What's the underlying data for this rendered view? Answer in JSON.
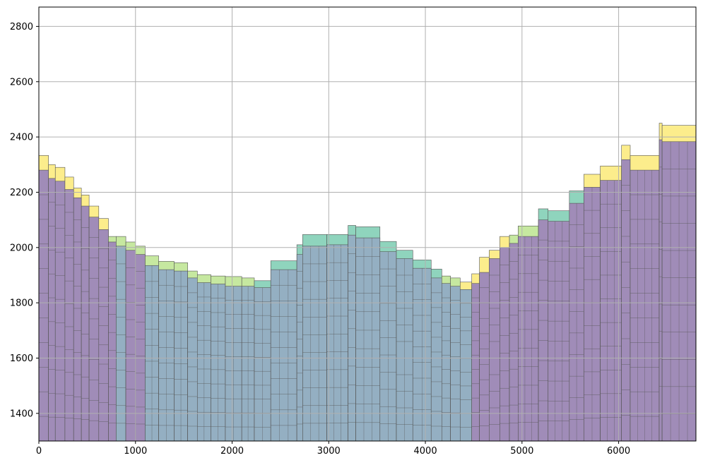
{
  "chart_data": {
    "type": "bar",
    "title": "",
    "xlabel": "",
    "ylabel": "",
    "xlim": [
      0,
      6800
    ],
    "ylim": [
      1300,
      2870
    ],
    "grid": true,
    "xticks": [
      0,
      1000,
      2000,
      3000,
      4000,
      5000,
      6000
    ],
    "xtick_labels": [
      "0",
      "1000",
      "2000",
      "3000",
      "4000",
      "5000",
      "6000"
    ],
    "yticks": [
      1400,
      1600,
      1800,
      2000,
      2200,
      2400,
      2600,
      2800
    ],
    "ytick_labels": [
      "1400",
      "1600",
      "1800",
      "2000",
      "2200",
      "2400",
      "2600",
      "2800"
    ],
    "colors": {
      "bedrock_purple": "#a08cb8",
      "bedrock_blue": "#94afc2",
      "layer_yellow": "#fced8c",
      "layer_lightgreen": "#c6e8a0",
      "layer_teal": "#8fd4bd",
      "edge": "#555555",
      "grid": "#b0b0b0"
    },
    "columns": [
      {
        "x0": 0,
        "x1": 100,
        "base": 2280,
        "cap": 2333,
        "cap_layer": "yellow",
        "fill": "purple"
      },
      {
        "x0": 100,
        "x1": 170,
        "base": 2250,
        "cap": 2300,
        "cap_layer": "yellow",
        "fill": "purple"
      },
      {
        "x0": 170,
        "x1": 270,
        "base": 2240,
        "cap": 2290,
        "cap_layer": "yellow",
        "fill": "purple"
      },
      {
        "x0": 270,
        "x1": 360,
        "base": 2210,
        "cap": 2255,
        "cap_layer": "yellow",
        "fill": "purple"
      },
      {
        "x0": 360,
        "x1": 440,
        "base": 2180,
        "cap": 2215,
        "cap_layer": "yellow",
        "fill": "purple"
      },
      {
        "x0": 440,
        "x1": 520,
        "base": 2150,
        "cap": 2190,
        "cap_layer": "yellow",
        "fill": "purple"
      },
      {
        "x0": 520,
        "x1": 620,
        "base": 2110,
        "cap": 2150,
        "cap_layer": "yellow",
        "fill": "purple"
      },
      {
        "x0": 620,
        "x1": 720,
        "base": 2065,
        "cap": 2105,
        "cap_layer": "yellow",
        "fill": "purple"
      },
      {
        "x0": 720,
        "x1": 800,
        "base": 2020,
        "cap": 2040,
        "cap_layer": "lightgreen",
        "fill": "purple"
      },
      {
        "x0": 800,
        "x1": 900,
        "base": 2005,
        "cap": 2040,
        "cap_layer": "lightgreen",
        "fill": "blue"
      },
      {
        "x0": 900,
        "x1": 1000,
        "base": 1990,
        "cap": 2020,
        "cap_layer": "lightgreen",
        "fill": "purple"
      },
      {
        "x0": 1000,
        "x1": 1100,
        "base": 1975,
        "cap": 2005,
        "cap_layer": "lightgreen",
        "fill": "purple"
      },
      {
        "x0": 1100,
        "x1": 1240,
        "base": 1935,
        "cap": 1970,
        "cap_layer": "lightgreen",
        "fill": "blue"
      },
      {
        "x0": 1240,
        "x1": 1400,
        "base": 1920,
        "cap": 1950,
        "cap_layer": "lightgreen",
        "fill": "blue"
      },
      {
        "x0": 1400,
        "x1": 1540,
        "base": 1915,
        "cap": 1945,
        "cap_layer": "lightgreen",
        "fill": "blue"
      },
      {
        "x0": 1540,
        "x1": 1640,
        "base": 1890,
        "cap": 1915,
        "cap_layer": "lightgreen",
        "fill": "blue"
      },
      {
        "x0": 1640,
        "x1": 1780,
        "base": 1873,
        "cap": 1902,
        "cap_layer": "lightgreen",
        "fill": "blue"
      },
      {
        "x0": 1780,
        "x1": 1930,
        "base": 1868,
        "cap": 1897,
        "cap_layer": "lightgreen",
        "fill": "blue"
      },
      {
        "x0": 1930,
        "x1": 2100,
        "base": 1860,
        "cap": 1895,
        "cap_layer": "lightgreen",
        "fill": "blue"
      },
      {
        "x0": 2100,
        "x1": 2230,
        "base": 1860,
        "cap": 1890,
        "cap_layer": "lightgreen",
        "fill": "blue"
      },
      {
        "x0": 2230,
        "x1": 2400,
        "base": 1855,
        "cap": 1880,
        "cap_layer": "teal",
        "fill": "blue"
      },
      {
        "x0": 2400,
        "x1": 2670,
        "base": 1920,
        "cap": 1952,
        "cap_layer": "teal",
        "fill": "blue"
      },
      {
        "x0": 2670,
        "x1": 2730,
        "base": 1975,
        "cap": 2010,
        "cap_layer": "teal",
        "fill": "blue"
      },
      {
        "x0": 2730,
        "x1": 2980,
        "base": 2005,
        "cap": 2047,
        "cap_layer": "teal",
        "fill": "blue"
      },
      {
        "x0": 2980,
        "x1": 3200,
        "base": 2010,
        "cap": 2047,
        "cap_layer": "teal",
        "fill": "blue"
      },
      {
        "x0": 3200,
        "x1": 3280,
        "base": 2045,
        "cap": 2080,
        "cap_layer": "teal",
        "fill": "blue"
      },
      {
        "x0": 3280,
        "x1": 3530,
        "base": 2035,
        "cap": 2075,
        "cap_layer": "teal",
        "fill": "blue"
      },
      {
        "x0": 3530,
        "x1": 3700,
        "base": 1985,
        "cap": 2022,
        "cap_layer": "teal",
        "fill": "blue"
      },
      {
        "x0": 3700,
        "x1": 3870,
        "base": 1960,
        "cap": 1990,
        "cap_layer": "teal",
        "fill": "blue"
      },
      {
        "x0": 3870,
        "x1": 4060,
        "base": 1925,
        "cap": 1955,
        "cap_layer": "teal",
        "fill": "blue"
      },
      {
        "x0": 4060,
        "x1": 4170,
        "base": 1890,
        "cap": 1922,
        "cap_layer": "teal",
        "fill": "blue"
      },
      {
        "x0": 4170,
        "x1": 4260,
        "base": 1870,
        "cap": 1897,
        "cap_layer": "lightgreen",
        "fill": "blue"
      },
      {
        "x0": 4260,
        "x1": 4360,
        "base": 1860,
        "cap": 1890,
        "cap_layer": "lightgreen",
        "fill": "blue"
      },
      {
        "x0": 4360,
        "x1": 4480,
        "base": 1848,
        "cap": 1875,
        "cap_layer": "yellow",
        "fill": "blue"
      },
      {
        "x0": 4480,
        "x1": 4560,
        "base": 1870,
        "cap": 1905,
        "cap_layer": "yellow",
        "fill": "purple"
      },
      {
        "x0": 4560,
        "x1": 4660,
        "base": 1910,
        "cap": 1965,
        "cap_layer": "yellow",
        "fill": "purple"
      },
      {
        "x0": 4660,
        "x1": 4770,
        "base": 1960,
        "cap": 1990,
        "cap_layer": "yellow",
        "fill": "purple"
      },
      {
        "x0": 4770,
        "x1": 4870,
        "base": 2000,
        "cap": 2040,
        "cap_layer": "yellow",
        "fill": "purple"
      },
      {
        "x0": 4870,
        "x1": 4960,
        "base": 2015,
        "cap": 2045,
        "cap_layer": "lightgreen",
        "fill": "purple"
      },
      {
        "x0": 4960,
        "x1": 5170,
        "base": 2040,
        "cap": 2078,
        "cap_layer": "lightgreen",
        "fill": "purple"
      },
      {
        "x0": 5170,
        "x1": 5270,
        "base": 2100,
        "cap": 2140,
        "cap_layer": "teal",
        "fill": "purple"
      },
      {
        "x0": 5270,
        "x1": 5490,
        "base": 2095,
        "cap": 2133,
        "cap_layer": "teal",
        "fill": "purple"
      },
      {
        "x0": 5490,
        "x1": 5640,
        "base": 2160,
        "cap": 2205,
        "cap_layer": "teal",
        "fill": "purple"
      },
      {
        "x0": 5640,
        "x1": 5810,
        "base": 2218,
        "cap": 2265,
        "cap_layer": "yellow",
        "fill": "purple"
      },
      {
        "x0": 5810,
        "x1": 6030,
        "base": 2243,
        "cap": 2295,
        "cap_layer": "yellow",
        "fill": "purple"
      },
      {
        "x0": 6030,
        "x1": 6120,
        "base": 2318,
        "cap": 2370,
        "cap_layer": "yellow",
        "fill": "purple"
      },
      {
        "x0": 6120,
        "x1": 6420,
        "base": 2280,
        "cap": 2333,
        "cap_layer": "yellow",
        "fill": "purple"
      },
      {
        "x0": 6420,
        "x1": 6450,
        "base": 2390,
        "cap": 2450,
        "cap_layer": "yellow",
        "fill": "purple"
      },
      {
        "x0": 6450,
        "x1": 6800,
        "base": 2383,
        "cap": 2442,
        "cap_layer": "yellow",
        "fill": "purple"
      }
    ]
  }
}
